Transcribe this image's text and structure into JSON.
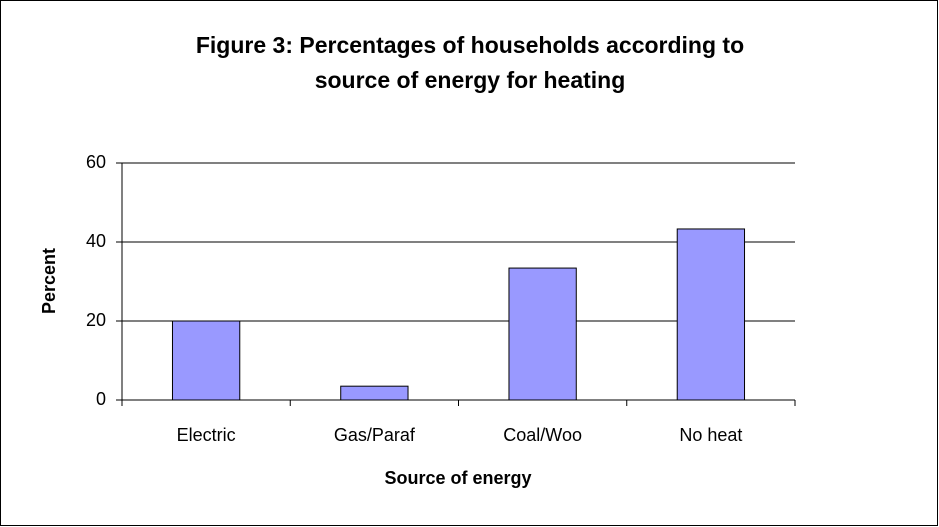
{
  "chart_data": {
    "type": "bar",
    "title": [
      "Figure 3: Percentages of households according to",
      "source of energy for heating"
    ],
    "xlabel": "Source of energy",
    "ylabel": "Percent",
    "categories": [
      "Electric",
      "Gas/Paraf",
      "Coal/Woo",
      "No heat"
    ],
    "values": [
      20,
      3.5,
      33.4,
      43.3
    ],
    "color": "#9999ff",
    "ylim": [
      0,
      60
    ],
    "yticks": [
      0,
      20,
      40,
      60
    ],
    "grid": true
  }
}
